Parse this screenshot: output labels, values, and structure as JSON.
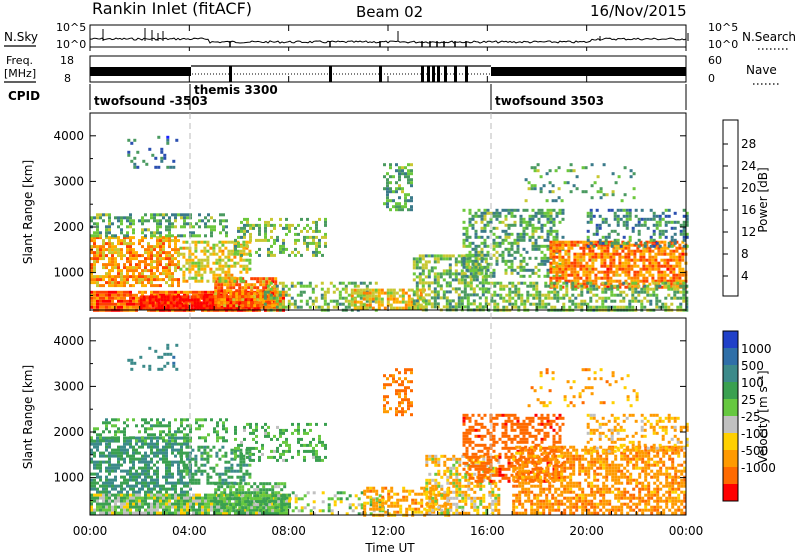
{
  "header": {
    "station": "Rankin Inlet (fitACF)",
    "beam": "Beam 02",
    "date": "16/Nov/2015"
  },
  "strips": {
    "nsky": {
      "label": "N.Sky",
      "ticks": [
        "10^5",
        "10^0"
      ]
    },
    "nsearch": {
      "label": "N.Search",
      "ticks": [
        "10^5",
        "10^0"
      ],
      "legend_style": "dotted"
    },
    "freq": {
      "label_top": "Freq.",
      "label_unit": "[MHz]",
      "ticks": [
        "18",
        "8"
      ]
    },
    "nave": {
      "label": "Nave",
      "ticks": [
        "60",
        "0"
      ],
      "legend_style": "dotted"
    },
    "cpid": {
      "label": "CPID",
      "segments": [
        {
          "name": "twofsound -3503",
          "start_hour": 0
        },
        {
          "name": "themis 3300",
          "start_hour": 3.95
        },
        {
          "name": "twofsound 3503",
          "start_hour": 16.0
        }
      ]
    }
  },
  "axes": {
    "x_ticks": [
      "00:00",
      "04:00",
      "08:00",
      "12:00",
      "16:00",
      "20:00",
      "00:00"
    ],
    "x_label": "Time UT",
    "y_label": "Slant Range [km]",
    "y_ticks": [
      "1000",
      "2000",
      "3000",
      "4000"
    ]
  },
  "colorbars": {
    "power": {
      "label": "Power [dB]",
      "ticks": [
        "4",
        "8",
        "12",
        "16",
        "20",
        "24",
        "28"
      ],
      "colors": [
        "#1a22ff",
        "#2a4fb0",
        "#3a7a8a",
        "#4a9a60",
        "#6cc83c",
        "#c8c832",
        "#ffb000",
        "#ff8000",
        "#ff4000",
        "#ff0000"
      ]
    },
    "velocity": {
      "label": "Velocity [m s⁻¹]",
      "ticks": [
        "1000",
        "500",
        "100",
        "25",
        "-25",
        "-100",
        "-500",
        "-1000"
      ],
      "colors": [
        "#2040c8",
        "#2f6fa8",
        "#3c8a8a",
        "#3aa050",
        "#66c840",
        "#c0c0c0",
        "#ffd000",
        "#ff9a00",
        "#ff6a00",
        "#ff0000"
      ]
    }
  },
  "chart_data": [
    {
      "type": "heatmap",
      "name": "Power",
      "x": {
        "unit": "hour UT",
        "range": [
          0,
          24
        ]
      },
      "y": {
        "unit": "km",
        "range": [
          180,
          4500
        ]
      },
      "zunit": "dB",
      "regions": [
        {
          "hours": [
            0.0,
            7.8
          ],
          "km": [
            200,
            600
          ],
          "value": 26,
          "density": 0.92
        },
        {
          "hours": [
            2.0,
            6.8
          ],
          "km": [
            200,
            500
          ],
          "value": 30,
          "density": 0.95
        },
        {
          "hours": [
            5.0,
            7.5
          ],
          "km": [
            250,
            900
          ],
          "value": 24,
          "density": 0.85
        },
        {
          "hours": [
            0.0,
            3.6
          ],
          "km": [
            700,
            1800
          ],
          "value": 22,
          "density": 0.7
        },
        {
          "hours": [
            3.6,
            6.4
          ],
          "km": [
            800,
            1700
          ],
          "value": 18,
          "density": 0.55
        },
        {
          "hours": [
            0.0,
            5.5
          ],
          "km": [
            1800,
            2300
          ],
          "value": 12,
          "density": 0.45
        },
        {
          "hours": [
            5.8,
            9.5
          ],
          "km": [
            1400,
            2200
          ],
          "value": 14,
          "density": 0.4
        },
        {
          "hours": [
            7.0,
            11.5
          ],
          "km": [
            200,
            800
          ],
          "value": 14,
          "density": 0.45
        },
        {
          "hours": [
            10.5,
            13.5
          ],
          "km": [
            200,
            650
          ],
          "value": 20,
          "density": 0.7
        },
        {
          "hours": [
            11.8,
            13.0
          ],
          "km": [
            2400,
            3400
          ],
          "value": 12,
          "density": 0.5
        },
        {
          "hours": [
            13.0,
            16.0
          ],
          "km": [
            200,
            1400
          ],
          "value": 14,
          "density": 0.6
        },
        {
          "hours": [
            15.0,
            19.0
          ],
          "km": [
            900,
            2400
          ],
          "value": 12,
          "density": 0.5
        },
        {
          "hours": [
            18.5,
            24.0
          ],
          "km": [
            700,
            1700
          ],
          "value": 24,
          "density": 0.75
        },
        {
          "hours": [
            16.0,
            24.0
          ],
          "km": [
            200,
            800
          ],
          "value": 14,
          "density": 0.55
        },
        {
          "hours": [
            20.0,
            24.0
          ],
          "km": [
            1600,
            2400
          ],
          "value": 10,
          "density": 0.4
        },
        {
          "hours": [
            1.5,
            3.5
          ],
          "km": [
            3300,
            4000
          ],
          "value": 8,
          "density": 0.15
        },
        {
          "hours": [
            17.5,
            22.0
          ],
          "km": [
            2600,
            3400
          ],
          "value": 12,
          "density": 0.15
        }
      ]
    },
    {
      "type": "heatmap",
      "name": "Velocity",
      "x": {
        "unit": "hour UT",
        "range": [
          0,
          24
        ]
      },
      "y": {
        "unit": "km",
        "range": [
          180,
          4500
        ]
      },
      "zunit": "m s-1",
      "regions": [
        {
          "hours": [
            0.0,
            8.0
          ],
          "km": [
            200,
            650
          ],
          "value": 60,
          "density": 0.9
        },
        {
          "hours": [
            5.0,
            7.8
          ],
          "km": [
            300,
            900
          ],
          "value": 120,
          "density": 0.7
        },
        {
          "hours": [
            0.0,
            4.0
          ],
          "km": [
            700,
            1900
          ],
          "value": 250,
          "density": 0.7
        },
        {
          "hours": [
            3.6,
            6.4
          ],
          "km": [
            900,
            1700
          ],
          "value": 200,
          "density": 0.5
        },
        {
          "hours": [
            0.0,
            5.5
          ],
          "km": [
            1800,
            2300
          ],
          "value": 150,
          "density": 0.4
        },
        {
          "hours": [
            5.8,
            9.5
          ],
          "km": [
            1400,
            2200
          ],
          "value": 120,
          "density": 0.35
        },
        {
          "hours": [
            8.0,
            12.0
          ],
          "km": [
            200,
            700
          ],
          "value": 30,
          "density": 0.35
        },
        {
          "hours": [
            11.0,
            14.5
          ],
          "km": [
            200,
            800
          ],
          "value": -150,
          "density": 0.55
        },
        {
          "hours": [
            11.8,
            13.0
          ],
          "km": [
            2400,
            3400
          ],
          "value": -300,
          "density": 0.45
        },
        {
          "hours": [
            13.5,
            16.5
          ],
          "km": [
            200,
            1500
          ],
          "value": -60,
          "density": 0.55
        },
        {
          "hours": [
            15.0,
            19.0
          ],
          "km": [
            900,
            2400
          ],
          "value": -400,
          "density": 0.55
        },
        {
          "hours": [
            17.0,
            24.0
          ],
          "km": [
            200,
            1700
          ],
          "value": -200,
          "density": 0.65
        },
        {
          "hours": [
            20.0,
            24.0
          ],
          "km": [
            1600,
            2400
          ],
          "value": -120,
          "density": 0.35
        },
        {
          "hours": [
            1.5,
            3.5
          ],
          "km": [
            3300,
            4000
          ],
          "value": 400,
          "density": 0.12
        },
        {
          "hours": [
            17.5,
            22.0
          ],
          "km": [
            2600,
            3400
          ],
          "value": -150,
          "density": 0.12
        }
      ]
    }
  ]
}
